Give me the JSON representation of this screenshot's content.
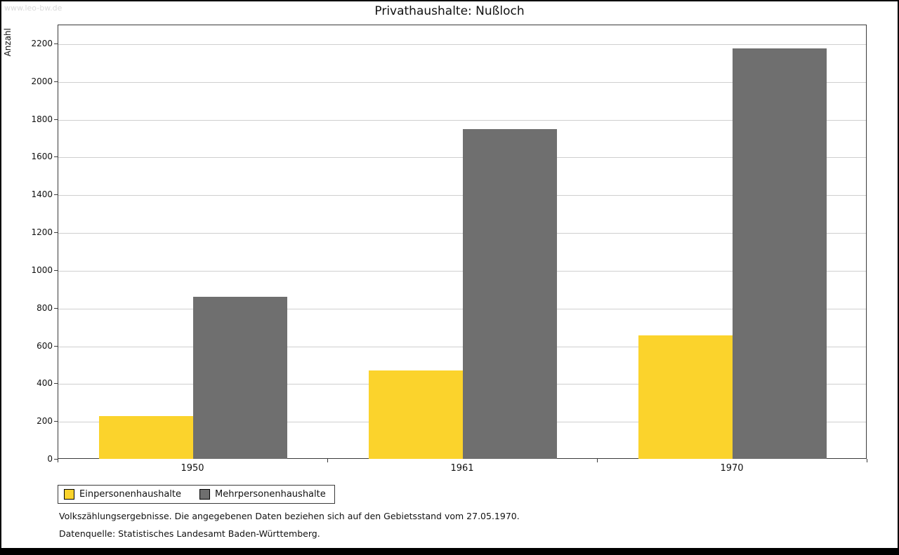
{
  "watermark": "www.leo-bw.de",
  "title": "Privathaushalte: Nußloch",
  "ylabel": "Anzahl",
  "chart_data": {
    "type": "bar",
    "categories": [
      "1950",
      "1961",
      "1970"
    ],
    "series": [
      {
        "name": "Einpersonenhaushalte",
        "color": "#fbd32c",
        "values": [
          225,
          470,
          655
        ]
      },
      {
        "name": "Mehrpersonenhaushalte",
        "color": "#6f6f6f",
        "values": [
          860,
          1745,
          2175
        ]
      }
    ],
    "title": "Privathaushalte: Nußloch",
    "xlabel": "",
    "ylabel": "Anzahl",
    "ylim": [
      0,
      2200
    ],
    "ytick_step": 200,
    "grid": true,
    "legend_position": "bottom"
  },
  "footnotes": [
    "Volkszählungsergebnisse. Die angegebenen Daten beziehen sich auf den Gebietsstand vom 27.05.1970.",
    "Datenquelle: Statistisches Landesamt Baden-Württemberg."
  ]
}
